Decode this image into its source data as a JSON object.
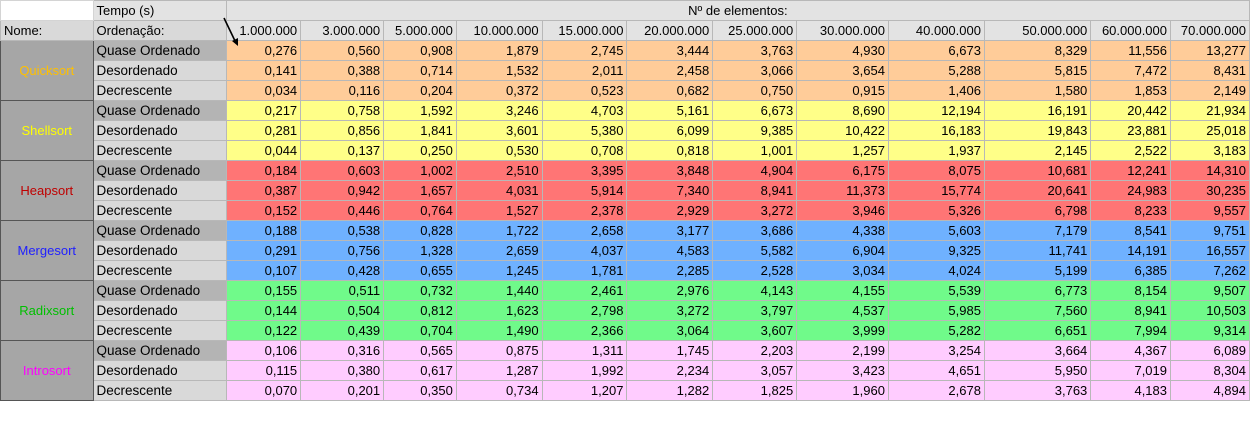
{
  "header": {
    "time_label": "Tempo (s)",
    "elements_label": "Nº de elementos:",
    "name_label": "Nome:",
    "ordering_label": "Ordenação:",
    "sizes": [
      "1.000.000",
      "3.000.000",
      "5.000.000",
      "10.000.000",
      "15.000.000",
      "20.000.000",
      "25.000.000",
      "30.000.000",
      "40.000.000",
      "50.000.000",
      "60.000.000",
      "70.000.000"
    ]
  },
  "colors": {
    "quicksort": {
      "bg": "#ffcc99",
      "text": "#ffc000"
    },
    "shellsort": {
      "bg": "#ffff88",
      "text": "#ffff00"
    },
    "heapsort": {
      "bg": "#ff7575",
      "text": "#c00000"
    },
    "mergesort": {
      "bg": "#6fb1ff",
      "text": "#2020ff"
    },
    "radixsort": {
      "bg": "#70fa8a",
      "text": "#00c000"
    },
    "introsort": {
      "bg": "#ffccff",
      "text": "#ff00ff"
    }
  },
  "algorithms": [
    {
      "name": "Quicksort",
      "rows": [
        {
          "label": "Quase Ordenado",
          "values": [
            "0,276",
            "0,560",
            "0,908",
            "1,879",
            "2,745",
            "3,444",
            "3,763",
            "4,930",
            "6,673",
            "8,329",
            "11,556",
            "13,277"
          ]
        },
        {
          "label": "Desordenado",
          "values": [
            "0,141",
            "0,388",
            "0,714",
            "1,532",
            "2,011",
            "2,458",
            "3,066",
            "3,654",
            "5,288",
            "5,815",
            "7,472",
            "8,431"
          ]
        },
        {
          "label": "Decrescente",
          "values": [
            "0,034",
            "0,116",
            "0,204",
            "0,372",
            "0,523",
            "0,682",
            "0,750",
            "0,915",
            "1,406",
            "1,580",
            "1,853",
            "2,149"
          ]
        }
      ]
    },
    {
      "name": "Shellsort",
      "rows": [
        {
          "label": "Quase Ordenado",
          "values": [
            "0,217",
            "0,758",
            "1,592",
            "3,246",
            "4,703",
            "5,161",
            "6,673",
            "8,690",
            "12,194",
            "16,191",
            "20,442",
            "21,934"
          ]
        },
        {
          "label": "Desordenado",
          "values": [
            "0,281",
            "0,856",
            "1,841",
            "3,601",
            "5,380",
            "6,099",
            "9,385",
            "10,422",
            "16,183",
            "19,843",
            "23,881",
            "25,018"
          ]
        },
        {
          "label": "Decrescente",
          "values": [
            "0,044",
            "0,137",
            "0,250",
            "0,530",
            "0,708",
            "0,818",
            "1,001",
            "1,257",
            "1,937",
            "2,145",
            "2,522",
            "3,183"
          ]
        }
      ]
    },
    {
      "name": "Heapsort",
      "rows": [
        {
          "label": "Quase Ordenado",
          "values": [
            "0,184",
            "0,603",
            "1,002",
            "2,510",
            "3,395",
            "3,848",
            "4,904",
            "6,175",
            "8,075",
            "10,681",
            "12,241",
            "14,310"
          ]
        },
        {
          "label": "Desordenado",
          "values": [
            "0,387",
            "0,942",
            "1,657",
            "4,031",
            "5,914",
            "7,340",
            "8,941",
            "11,373",
            "15,774",
            "20,641",
            "24,983",
            "30,235"
          ]
        },
        {
          "label": "Decrescente",
          "values": [
            "0,152",
            "0,446",
            "0,764",
            "1,527",
            "2,378",
            "2,929",
            "3,272",
            "3,946",
            "5,326",
            "6,798",
            "8,233",
            "9,557"
          ]
        }
      ]
    },
    {
      "name": "Mergesort",
      "rows": [
        {
          "label": "Quase Ordenado",
          "values": [
            "0,188",
            "0,538",
            "0,828",
            "1,722",
            "2,658",
            "3,177",
            "3,686",
            "4,338",
            "5,603",
            "7,179",
            "8,541",
            "9,751"
          ]
        },
        {
          "label": "Desordenado",
          "values": [
            "0,291",
            "0,756",
            "1,328",
            "2,659",
            "4,037",
            "4,583",
            "5,582",
            "6,904",
            "9,325",
            "11,741",
            "14,191",
            "16,557"
          ]
        },
        {
          "label": "Decrescente",
          "values": [
            "0,107",
            "0,428",
            "0,655",
            "1,245",
            "1,781",
            "2,285",
            "2,528",
            "3,034",
            "4,024",
            "5,199",
            "6,385",
            "7,262"
          ]
        }
      ]
    },
    {
      "name": "Radixsort",
      "rows": [
        {
          "label": "Quase Ordenado",
          "values": [
            "0,155",
            "0,511",
            "0,732",
            "1,440",
            "2,461",
            "2,976",
            "4,143",
            "4,155",
            "5,539",
            "6,773",
            "8,154",
            "9,507"
          ]
        },
        {
          "label": "Desordenado",
          "values": [
            "0,144",
            "0,504",
            "0,812",
            "1,623",
            "2,798",
            "3,272",
            "3,797",
            "4,537",
            "5,985",
            "7,560",
            "8,941",
            "10,503"
          ]
        },
        {
          "label": "Decrescente",
          "values": [
            "0,122",
            "0,439",
            "0,704",
            "1,490",
            "2,366",
            "3,064",
            "3,607",
            "3,999",
            "5,282",
            "6,651",
            "7,994",
            "9,314"
          ]
        }
      ]
    },
    {
      "name": "Introsort",
      "rows": [
        {
          "label": "Quase Ordenado",
          "values": [
            "0,106",
            "0,316",
            "0,565",
            "0,875",
            "1,311",
            "1,745",
            "2,203",
            "2,199",
            "3,254",
            "3,664",
            "4,367",
            "6,089"
          ]
        },
        {
          "label": "Desordenado",
          "values": [
            "0,115",
            "0,380",
            "0,617",
            "1,287",
            "1,992",
            "2,234",
            "3,057",
            "3,423",
            "4,651",
            "5,950",
            "7,019",
            "8,304"
          ]
        },
        {
          "label": "Decrescente",
          "values": [
            "0,070",
            "0,201",
            "0,350",
            "0,734",
            "1,207",
            "1,282",
            "1,825",
            "1,960",
            "2,678",
            "3,763",
            "4,183",
            "4,894"
          ]
        }
      ]
    }
  ]
}
